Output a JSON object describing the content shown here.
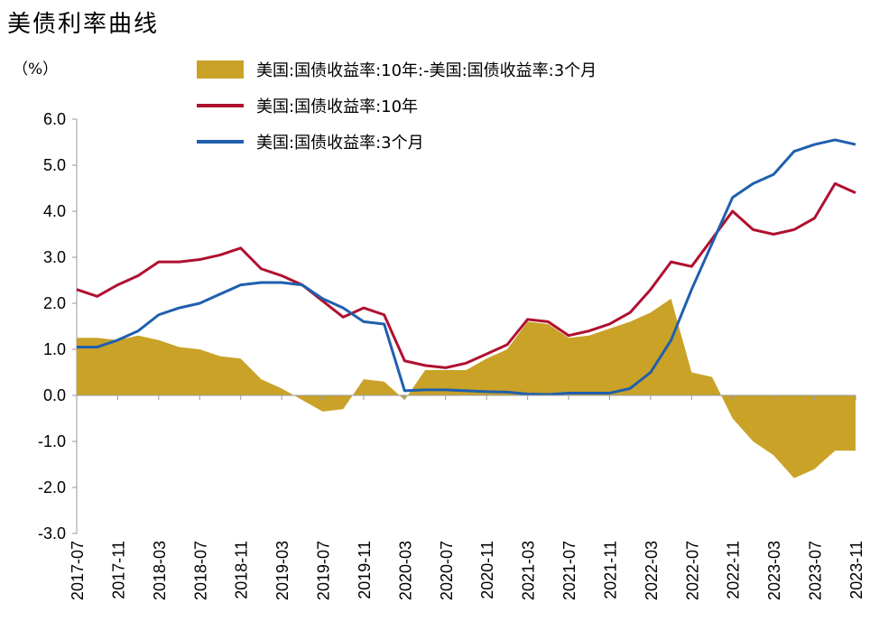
{
  "title": "美债利率曲线",
  "unit": "（%）",
  "colors": {
    "spread": "#C9A227",
    "ten_year": "#B01030",
    "three_month": "#1F5FAE",
    "axis": "#999999"
  },
  "chart_data": {
    "type": "line",
    "title": "美债利率曲线",
    "ylabel": "（%）",
    "ylim": [
      -3.0,
      6.0
    ],
    "y_ticks": [
      "6.0",
      "5.0",
      "4.0",
      "3.0",
      "2.0",
      "1.0",
      "0.0",
      "-1.0",
      "-2.0",
      "-3.0"
    ],
    "x_ticks": [
      "2017-07",
      "2017-11",
      "2018-03",
      "2018-07",
      "2018-11",
      "2019-03",
      "2019-07",
      "2019-11",
      "2020-03",
      "2020-07",
      "2020-11",
      "2021-03",
      "2021-07",
      "2021-11",
      "2022-03",
      "2022-07",
      "2022-11",
      "2023-03",
      "2023-07",
      "2023-11"
    ],
    "x": [
      "2017-07",
      "2017-09",
      "2017-11",
      "2018-01",
      "2018-03",
      "2018-05",
      "2018-07",
      "2018-09",
      "2018-11",
      "2019-01",
      "2019-03",
      "2019-05",
      "2019-07",
      "2019-09",
      "2019-11",
      "2020-01",
      "2020-03",
      "2020-05",
      "2020-07",
      "2020-09",
      "2020-11",
      "2021-01",
      "2021-03",
      "2021-05",
      "2021-07",
      "2021-09",
      "2021-11",
      "2022-01",
      "2022-03",
      "2022-05",
      "2022-07",
      "2022-09",
      "2022-11",
      "2023-01",
      "2023-03",
      "2023-05",
      "2023-07",
      "2023-09",
      "2023-11"
    ],
    "legend": [
      "美国:国债收益率:10年:-美国:国债收益率:3个月",
      "美国:国债收益率:10年",
      "美国:国债收益率:3个月"
    ],
    "series": [
      {
        "name": "美国:国债收益率:10年:-美国:国债收益率:3个月",
        "kind": "area",
        "values": [
          1.25,
          1.25,
          1.2,
          1.3,
          1.2,
          1.05,
          1.0,
          0.85,
          0.8,
          0.35,
          0.15,
          -0.1,
          -0.35,
          -0.3,
          0.35,
          0.3,
          -0.1,
          0.55,
          0.55,
          0.55,
          0.8,
          1.0,
          1.6,
          1.55,
          1.25,
          1.3,
          1.45,
          1.6,
          1.8,
          2.1,
          0.5,
          0.4,
          -0.5,
          -1.0,
          -1.3,
          -1.8,
          -1.6,
          -1.2,
          -1.2
        ]
      },
      {
        "name": "美国:国债收益率:10年",
        "kind": "line",
        "values": [
          2.3,
          2.15,
          2.4,
          2.6,
          2.9,
          2.9,
          2.95,
          3.05,
          3.2,
          2.75,
          2.6,
          2.4,
          2.05,
          1.7,
          1.9,
          1.75,
          0.75,
          0.65,
          0.6,
          0.7,
          0.9,
          1.1,
          1.65,
          1.6,
          1.3,
          1.4,
          1.55,
          1.8,
          2.3,
          2.9,
          2.8,
          3.4,
          4.0,
          3.6,
          3.5,
          3.6,
          3.85,
          4.6,
          4.4
        ]
      },
      {
        "name": "美国:国债收益率:3个月",
        "kind": "line",
        "values": [
          1.05,
          1.05,
          1.2,
          1.4,
          1.75,
          1.9,
          2.0,
          2.2,
          2.4,
          2.45,
          2.45,
          2.4,
          2.1,
          1.9,
          1.6,
          1.55,
          0.1,
          0.12,
          0.12,
          0.1,
          0.08,
          0.07,
          0.03,
          0.02,
          0.05,
          0.05,
          0.05,
          0.15,
          0.5,
          1.2,
          2.3,
          3.3,
          4.3,
          4.6,
          4.8,
          5.3,
          5.45,
          5.55,
          5.45
        ]
      }
    ]
  }
}
